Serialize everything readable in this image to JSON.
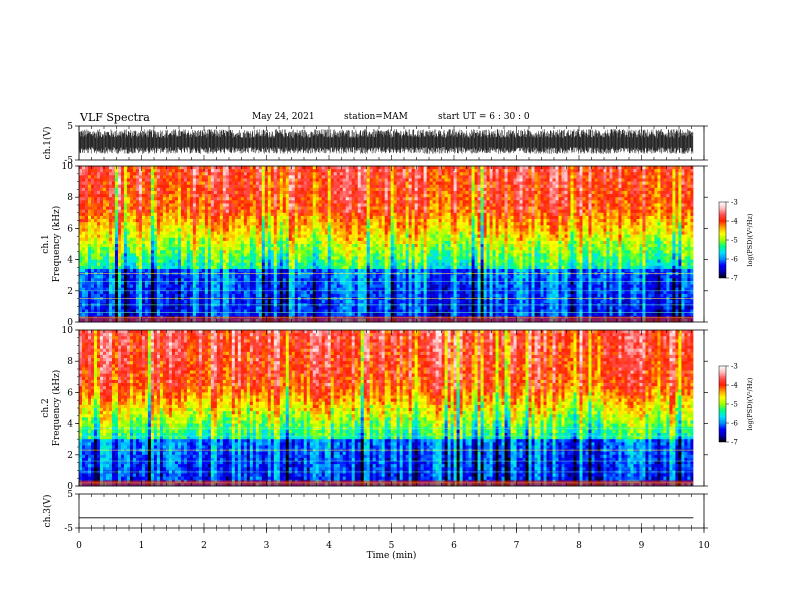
{
  "header": {
    "title": "VLF Spectra",
    "date": "May 24, 2021",
    "station": "station=MAM",
    "start_ut": "start UT =  6 : 30 : 0"
  },
  "chart_data": [
    {
      "id": "ch1-waveform",
      "type": "line",
      "ylabel": "ch.1(V)",
      "ylim": [
        -5,
        5
      ],
      "y_ticks": [
        "5",
        "-5"
      ],
      "trace": "dense noisy waveform spanning roughly -3 to +4 V over 0-9.83 min",
      "x_end": 9.83
    },
    {
      "id": "ch1-spectrogram",
      "type": "heatmap",
      "ylabel_top": "ch.1",
      "ylabel": "Frequency (kHz)",
      "ylim": [
        0,
        10
      ],
      "y_ticks": [
        "0",
        "2",
        "4",
        "6",
        "8",
        "10"
      ],
      "x_end": 9.83,
      "colorbar": {
        "label": "log(PSD)(V²/Hz)",
        "range": [
          -7,
          -3
        ],
        "ticks": [
          "-3",
          "-4",
          "-5",
          "-6",
          "-7"
        ],
        "colors": [
          "#000000",
          "#0000b0",
          "#0000ff",
          "#0090ff",
          "#00e0ff",
          "#00ff80",
          "#a0ff00",
          "#ffff00",
          "#ffa000",
          "#ff2000",
          "#ff5050",
          "#ffc0c0",
          "#ffffff"
        ]
      },
      "frequency_profile": "high power (red) above ~7 kHz, yellow-green 4-7 kHz, blue below 3.5 kHz with horizontal lines near 0.5-3.5 kHz"
    },
    {
      "id": "ch2-spectrogram",
      "type": "heatmap",
      "ylabel_top": "ch.2",
      "ylabel": "Frequency (kHz)",
      "ylim": [
        0,
        10
      ],
      "y_ticks": [
        "0",
        "2",
        "4",
        "6",
        "8",
        "10"
      ],
      "x_end": 9.83,
      "colorbar": {
        "label": "log(PSD)(V²/Hz)",
        "range": [
          -7,
          -3
        ],
        "ticks": [
          "-3",
          "-4",
          "-5",
          "-6",
          "-7"
        ],
        "colors": [
          "#000000",
          "#0000b0",
          "#0000ff",
          "#0090ff",
          "#00e0ff",
          "#00ff80",
          "#a0ff00",
          "#ffff00",
          "#ffa000",
          "#ff2000",
          "#ff5050",
          "#ffc0c0",
          "#ffffff"
        ]
      },
      "frequency_profile": "high power (red) above ~6.5 kHz, yellow-green 3.5-6.5 kHz, blue below 3 kHz with a yellow line near 3.7 kHz"
    },
    {
      "id": "ch3-waveform",
      "type": "line",
      "ylabel": "ch.3(V)",
      "ylim": [
        -5,
        5
      ],
      "y_ticks": [
        "5",
        "-5"
      ],
      "trace": "flat line at about -2 V",
      "x_end": 9.83,
      "value": -2
    }
  ],
  "x_axis": {
    "label": "Time (min)",
    "xlim": [
      0,
      10
    ],
    "ticks": [
      "0",
      "1",
      "2",
      "3",
      "4",
      "5",
      "6",
      "7",
      "8",
      "9",
      "10"
    ]
  }
}
